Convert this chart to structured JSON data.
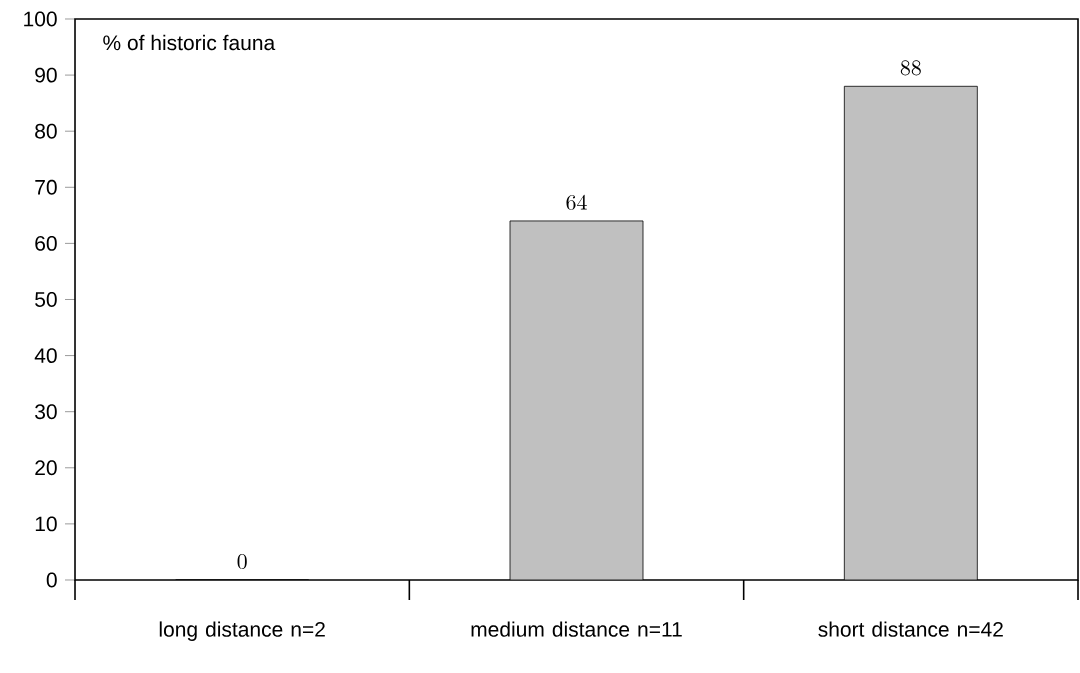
{
  "chart_data": {
    "type": "bar",
    "ylabel": "% of historic fauna",
    "categories": [
      "long distance n=2",
      "medium distance n=11",
      "short distance n=42"
    ],
    "values": [
      0,
      64,
      88
    ],
    "color": "#c0c0c0",
    "ylim": [
      0,
      100
    ],
    "yticks": [
      0,
      10,
      20,
      30,
      40,
      50,
      60,
      70,
      80,
      90,
      100
    ],
    "data_labels": true
  }
}
